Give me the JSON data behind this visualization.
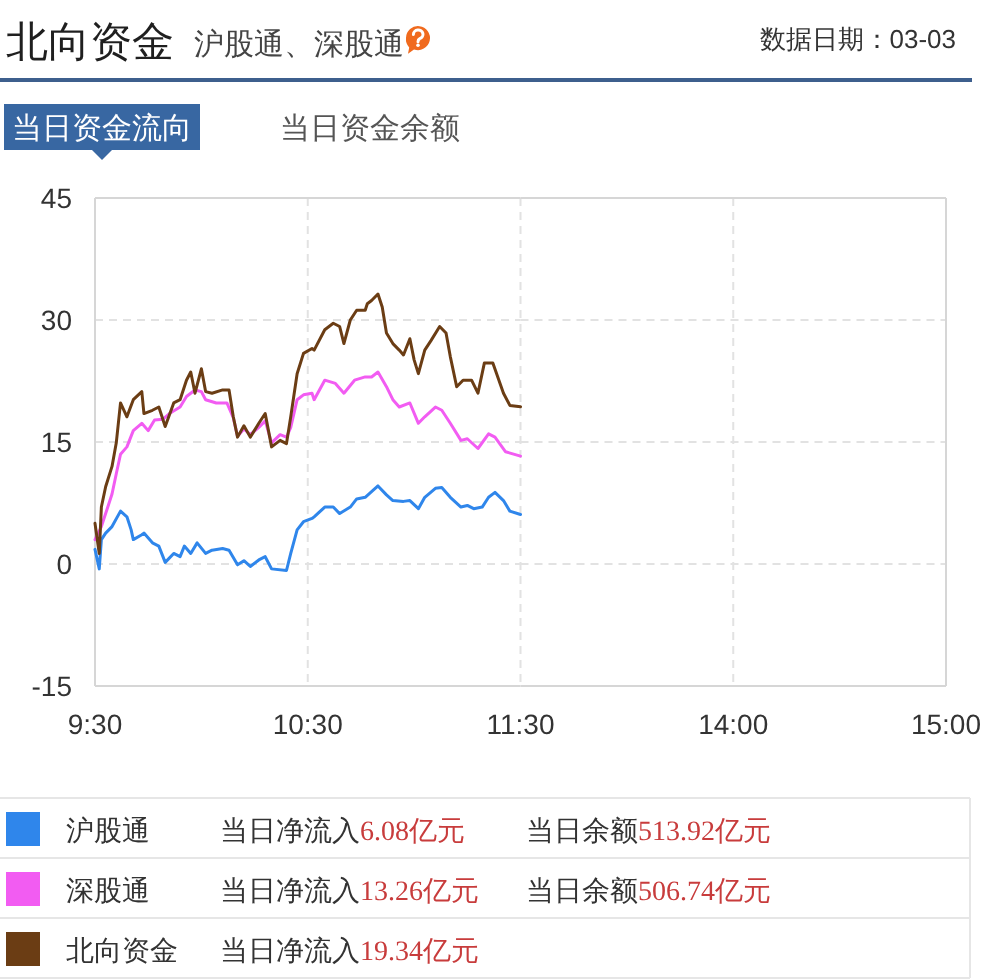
{
  "chart_data": [
    {
      "type": "line",
      "title": "北向资金",
      "subtitle": "沪股通、深股通",
      "annotations": [
        "数据日期：03-03",
        "当日资金流向",
        "当日资金余额",
        "当日净流入",
        "6.08亿元",
        "当日余额",
        "513.92亿元",
        "当日净流入",
        "13.26亿元",
        "当日余额",
        "506.74亿元",
        "当日净流入",
        "19.34亿元"
      ],
      "xlim": [
        9.5,
        11.5
      ],
      "xticks": [
        {
          "value": 9.5,
          "label": "9:30"
        },
        {
          "value": 10.5,
          "label": "10:30"
        },
        {
          "value": 11.5,
          "label": "11:30"
        }
      ],
      "ylim": [
        -15,
        45
      ],
      "yticks": [
        -15,
        0,
        15,
        30,
        45
      ],
      "grid": true,
      "legend": "bottom",
      "series": [
        {
          "name": "沪股通",
          "color": "#2f86eb",
          "x": [
            9.5,
            9.52,
            9.53,
            9.55,
            9.58,
            9.62,
            9.65,
            9.67,
            9.68,
            9.72,
            9.73,
            9.77,
            9.8,
            9.83,
            9.87,
            9.9,
            9.92,
            9.95,
            9.98,
            10.02,
            10.05,
            10.1,
            10.13,
            10.17,
            10.2,
            10.23,
            10.27,
            10.3,
            10.33,
            10.4,
            10.42,
            10.45,
            10.48,
            10.52,
            10.53,
            10.58,
            10.62,
            10.65,
            10.7,
            10.73,
            10.77,
            10.8,
            10.83,
            10.87,
            10.9,
            10.95,
            10.98,
            11.02,
            11.05,
            11.1,
            11.13,
            11.17,
            11.22,
            11.25,
            11.28,
            11.32,
            11.35,
            11.38,
            11.42,
            11.45,
            11.5
          ],
          "values": [
            1.8,
            -0.6,
            3.0,
            3.8,
            4.6,
            6.5,
            5.8,
            4.2,
            3.0,
            3.6,
            3.8,
            2.6,
            2.2,
            0.2,
            1.3,
            0.9,
            2.2,
            1.3,
            2.6,
            1.3,
            1.7,
            1.9,
            1.7,
            -0.1,
            0.4,
            -0.3,
            0.5,
            0.9,
            -0.6,
            -0.8,
            1.3,
            4.2,
            5.2,
            5.6,
            5.8,
            7.0,
            7.0,
            6.2,
            7.0,
            8.0,
            8.2,
            8.9,
            9.6,
            8.5,
            7.8,
            7.7,
            7.8,
            6.8,
            8.2,
            9.3,
            9.4,
            8.2,
            7.0,
            7.2,
            6.8,
            7.0,
            8.2,
            8.8,
            7.8,
            6.5,
            6.08
          ]
        },
        {
          "name": "深股通",
          "color": "#f25cf2",
          "x": [
            9.5,
            9.53,
            9.55,
            9.58,
            9.6,
            9.62,
            9.65,
            9.68,
            9.72,
            9.75,
            9.78,
            9.82,
            9.85,
            9.9,
            9.93,
            9.97,
            10.0,
            10.02,
            10.07,
            10.12,
            10.15,
            10.17,
            10.2,
            10.23,
            10.27,
            10.3,
            10.33,
            10.37,
            10.4,
            10.42,
            10.45,
            10.48,
            10.52,
            10.53,
            10.58,
            10.63,
            10.67,
            10.72,
            10.77,
            10.8,
            10.83,
            10.87,
            10.9,
            10.93,
            10.98,
            11.02,
            11.05,
            11.1,
            11.13,
            11.17,
            11.22,
            11.25,
            11.3,
            11.35,
            11.38,
            11.43,
            11.5
          ],
          "values": [
            3.0,
            4.6,
            6.2,
            8.6,
            11.1,
            13.5,
            14.4,
            16.4,
            17.3,
            16.4,
            17.7,
            17.8,
            18.5,
            19.3,
            20.6,
            21.4,
            21.2,
            20.2,
            19.8,
            19.8,
            18.0,
            15.7,
            16.6,
            15.9,
            16.8,
            17.6,
            14.9,
            15.9,
            15.6,
            16.8,
            20.2,
            20.8,
            21.0,
            20.2,
            22.6,
            22.2,
            21.0,
            22.6,
            23.0,
            23.0,
            23.6,
            21.8,
            20.2,
            19.3,
            19.8,
            17.3,
            18.1,
            19.3,
            18.9,
            17.3,
            15.2,
            15.4,
            14.2,
            16.0,
            15.6,
            13.8,
            13.26
          ]
        },
        {
          "name": "北向资金",
          "color": "#6b3d14",
          "x": [
            9.5,
            9.52,
            9.53,
            9.55,
            9.58,
            9.6,
            9.62,
            9.65,
            9.68,
            9.72,
            9.73,
            9.77,
            9.8,
            9.83,
            9.87,
            9.9,
            9.93,
            9.95,
            9.97,
            10.0,
            10.02,
            10.05,
            10.1,
            10.13,
            10.15,
            10.17,
            10.2,
            10.23,
            10.27,
            10.3,
            10.33,
            10.37,
            10.4,
            10.42,
            10.45,
            10.48,
            10.52,
            10.53,
            10.58,
            10.62,
            10.65,
            10.67,
            10.7,
            10.73,
            10.77,
            10.78,
            10.8,
            10.83,
            10.85,
            10.87,
            10.9,
            10.93,
            10.95,
            10.98,
            11.0,
            11.02,
            11.05,
            11.08,
            11.12,
            11.15,
            11.17,
            11.2,
            11.23,
            11.27,
            11.3,
            11.33,
            11.37,
            11.42,
            11.45,
            11.5
          ],
          "values": [
            5.0,
            1.3,
            7.0,
            9.5,
            12.0,
            14.9,
            19.8,
            18.1,
            20.2,
            21.2,
            18.5,
            18.9,
            19.3,
            16.9,
            19.8,
            20.2,
            22.6,
            23.6,
            21.0,
            24.0,
            21.2,
            21.0,
            21.4,
            21.4,
            18.1,
            15.6,
            17.0,
            15.6,
            17.3,
            18.5,
            14.4,
            15.2,
            14.8,
            18.1,
            23.4,
            25.9,
            26.5,
            26.3,
            28.8,
            29.6,
            29.2,
            27.1,
            30.0,
            31.2,
            31.2,
            32.0,
            32.4,
            33.2,
            31.6,
            28.4,
            27.1,
            26.3,
            25.7,
            27.7,
            25.1,
            23.4,
            26.3,
            27.5,
            29.2,
            28.4,
            25.5,
            21.8,
            22.6,
            22.6,
            21.0,
            24.7,
            24.7,
            21.0,
            19.5,
            19.34
          ]
        }
      ]
    },
    {
      "type": "line",
      "xlim": [
        13,
        15
      ],
      "xticks": [
        {
          "value": 14,
          "label": "14:00"
        },
        {
          "value": 15,
          "label": "15:00"
        }
      ],
      "ylim": [
        -15,
        45
      ],
      "yticks": [
        -15,
        0,
        15,
        30,
        45
      ],
      "grid": true,
      "tick_labels": "x"
    }
  ]
}
